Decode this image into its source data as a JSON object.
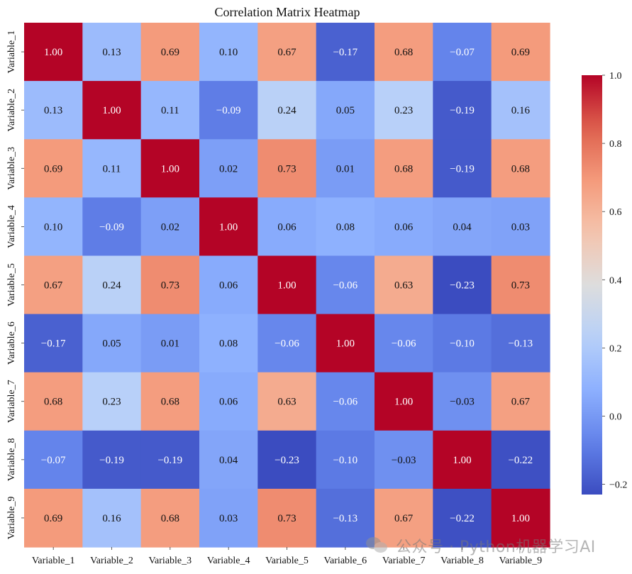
{
  "chart_data": {
    "type": "heatmap",
    "title": "Correlation Matrix Heatmap",
    "x_labels": [
      "Variable_1",
      "Variable_2",
      "Variable_3",
      "Variable_4",
      "Variable_5",
      "Variable_6",
      "Variable_7",
      "Variable_8",
      "Variable_9"
    ],
    "y_labels": [
      "Variable_1",
      "Variable_2",
      "Variable_3",
      "Variable_4",
      "Variable_5",
      "Variable_6",
      "Variable_7",
      "Variable_8",
      "Variable_9"
    ],
    "values": [
      [
        1.0,
        0.13,
        0.69,
        0.1,
        0.67,
        -0.17,
        0.68,
        -0.07,
        0.69
      ],
      [
        0.13,
        1.0,
        0.11,
        -0.09,
        0.24,
        0.05,
        0.23,
        -0.19,
        0.16
      ],
      [
        0.69,
        0.11,
        1.0,
        0.02,
        0.73,
        0.01,
        0.68,
        -0.19,
        0.68
      ],
      [
        0.1,
        -0.09,
        0.02,
        1.0,
        0.06,
        0.08,
        0.06,
        0.04,
        0.03
      ],
      [
        0.67,
        0.24,
        0.73,
        0.06,
        1.0,
        -0.06,
        0.63,
        -0.23,
        0.73
      ],
      [
        -0.17,
        0.05,
        0.01,
        0.08,
        -0.06,
        1.0,
        -0.06,
        -0.1,
        -0.13
      ],
      [
        0.68,
        0.23,
        0.68,
        0.06,
        0.63,
        -0.06,
        1.0,
        -0.03,
        0.67
      ],
      [
        -0.07,
        -0.19,
        -0.19,
        0.04,
        -0.23,
        -0.1,
        -0.03,
        1.0,
        -0.22
      ],
      [
        0.69,
        0.16,
        0.68,
        0.03,
        0.73,
        -0.13,
        0.67,
        -0.22,
        1.0
      ]
    ],
    "colormap": "coolwarm",
    "vmin": -0.23,
    "vmax": 1.0,
    "annotated": true,
    "annotation_format": "0.00",
    "colorbar": {
      "position": "right",
      "ticks": [
        -0.2,
        0.0,
        0.2,
        0.4,
        0.6,
        0.8,
        1.0
      ],
      "tick_labels": [
        "−0.2",
        "0.0",
        "0.2",
        "0.4",
        "0.6",
        "0.8",
        "1.0"
      ]
    },
    "grid": false
  },
  "watermark": {
    "text": "公众号 · Python机器学习AI",
    "icon": "wechat-icon"
  }
}
